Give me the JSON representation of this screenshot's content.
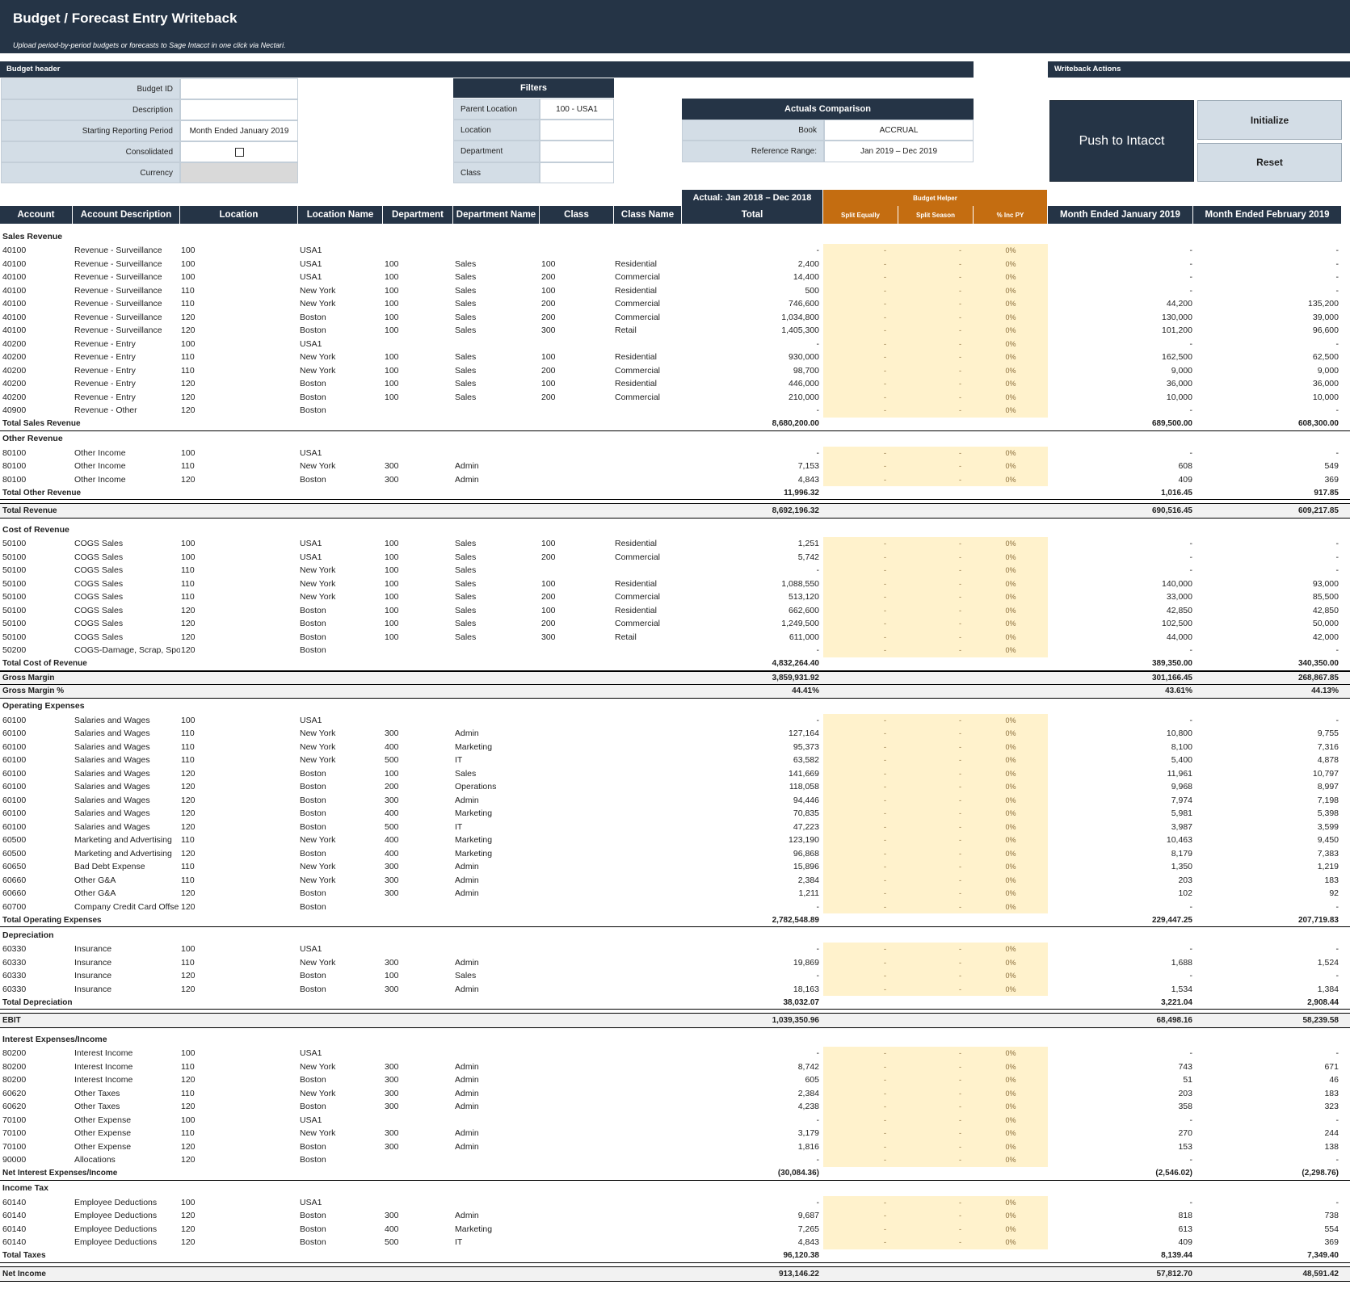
{
  "banner": {
    "title": "Budget / Forecast Entry Writeback",
    "subtitle": "Upload period-by-period budgets or forecasts to Sage Intacct in one click via Nectari."
  },
  "budget_header": {
    "title": "Budget header",
    "fields": [
      {
        "label": "Budget ID",
        "value": ""
      },
      {
        "label": "Description",
        "value": ""
      },
      {
        "label": "Starting Reporting Period",
        "value": "Month Ended January 2019"
      },
      {
        "label": "Consolidated",
        "value": ""
      },
      {
        "label": "Currency",
        "value": ""
      }
    ]
  },
  "filters": {
    "title": "Filters",
    "fields": [
      {
        "label": "Parent Location",
        "value": "100 - USA1"
      },
      {
        "label": "Location",
        "value": ""
      },
      {
        "label": "Department",
        "value": ""
      },
      {
        "label": "Class",
        "value": ""
      }
    ]
  },
  "actuals": {
    "title": "Actuals Comparison",
    "fields": [
      {
        "label": "Book",
        "value": "ACCRUAL"
      },
      {
        "label": "Reference Range:",
        "value": "Jan 2019 – Dec 2019"
      }
    ]
  },
  "writeback": {
    "title": "Writeback Actions",
    "push": "Push to Intacct",
    "initialize": "Initialize",
    "reset": "Reset"
  },
  "table_headers": {
    "account": "Account",
    "desc": "Account Description",
    "location": "Location",
    "loc_name": "Location Name",
    "dept": "Department",
    "dept_name": "Department Name",
    "class": "Class",
    "class_name": "Class Name",
    "actual_group": "Actual: Jan 2018 – Dec 2018",
    "total": "Total",
    "helper_group": "Budget Helper",
    "split_equally": "Split Equally",
    "split_season": "Split Season",
    "inc_py": "% Inc PY",
    "m1": "Month Ended January 2019",
    "m2": "Month Ended February 2019"
  },
  "rows": [
    {
      "t": "sec",
      "label": "Sales Revenue"
    },
    {
      "t": "d",
      "c": [
        "40100",
        "Revenue - Surveillance",
        "100",
        "USA1",
        "",
        "",
        "",
        ""
      ],
      "tot": "-",
      "m1": "-",
      "m2": "-"
    },
    {
      "t": "d",
      "c": [
        "40100",
        "Revenue - Surveillance",
        "100",
        "USA1",
        "100",
        "Sales",
        "100",
        "Residential"
      ],
      "tot": "2,400",
      "m1": "-",
      "m2": "-"
    },
    {
      "t": "d",
      "c": [
        "40100",
        "Revenue - Surveillance",
        "100",
        "USA1",
        "100",
        "Sales",
        "200",
        "Commercial"
      ],
      "tot": "14,400",
      "m1": "-",
      "m2": "-"
    },
    {
      "t": "d",
      "c": [
        "40100",
        "Revenue - Surveillance",
        "110",
        "New York",
        "100",
        "Sales",
        "100",
        "Residential"
      ],
      "tot": "500",
      "m1": "-",
      "m2": "-"
    },
    {
      "t": "d",
      "c": [
        "40100",
        "Revenue - Surveillance",
        "110",
        "New York",
        "100",
        "Sales",
        "200",
        "Commercial"
      ],
      "tot": "746,600",
      "m1": "44,200",
      "m2": "135,200"
    },
    {
      "t": "d",
      "c": [
        "40100",
        "Revenue - Surveillance",
        "120",
        "Boston",
        "100",
        "Sales",
        "200",
        "Commercial"
      ],
      "tot": "1,034,800",
      "m1": "130,000",
      "m2": "39,000"
    },
    {
      "t": "d",
      "c": [
        "40100",
        "Revenue - Surveillance",
        "120",
        "Boston",
        "100",
        "Sales",
        "300",
        "Retail"
      ],
      "tot": "1,405,300",
      "m1": "101,200",
      "m2": "96,600"
    },
    {
      "t": "d",
      "c": [
        "40200",
        "Revenue - Entry",
        "100",
        "USA1",
        "",
        "",
        "",
        ""
      ],
      "tot": "-",
      "m1": "-",
      "m2": "-"
    },
    {
      "t": "d",
      "c": [
        "40200",
        "Revenue - Entry",
        "110",
        "New York",
        "100",
        "Sales",
        "100",
        "Residential"
      ],
      "tot": "930,000",
      "m1": "162,500",
      "m2": "62,500"
    },
    {
      "t": "d",
      "c": [
        "40200",
        "Revenue - Entry",
        "110",
        "New York",
        "100",
        "Sales",
        "200",
        "Commercial"
      ],
      "tot": "98,700",
      "m1": "9,000",
      "m2": "9,000"
    },
    {
      "t": "d",
      "c": [
        "40200",
        "Revenue - Entry",
        "120",
        "Boston",
        "100",
        "Sales",
        "100",
        "Residential"
      ],
      "tot": "446,000",
      "m1": "36,000",
      "m2": "36,000"
    },
    {
      "t": "d",
      "c": [
        "40200",
        "Revenue - Entry",
        "120",
        "Boston",
        "100",
        "Sales",
        "200",
        "Commercial"
      ],
      "tot": "210,000",
      "m1": "10,000",
      "m2": "10,000"
    },
    {
      "t": "d",
      "c": [
        "40900",
        "Revenue - Other",
        "120",
        "Boston",
        "",
        "",
        "",
        ""
      ],
      "tot": "-",
      "m1": "-",
      "m2": "-"
    },
    {
      "t": "tot",
      "label": "Total Sales Revenue",
      "tot": "8,680,200.00",
      "m1": "689,500.00",
      "m2": "608,300.00"
    },
    {
      "t": "sec",
      "label": "Other Revenue"
    },
    {
      "t": "d",
      "c": [
        "80100",
        "Other Income",
        "100",
        "USA1",
        "",
        "",
        "",
        ""
      ],
      "tot": "-",
      "m1": "-",
      "m2": "-"
    },
    {
      "t": "d",
      "c": [
        "80100",
        "Other Income",
        "110",
        "New York",
        "300",
        "Admin",
        "",
        ""
      ],
      "tot": "7,153",
      "m1": "608",
      "m2": "549"
    },
    {
      "t": "d",
      "c": [
        "80100",
        "Other Income",
        "120",
        "Boston",
        "300",
        "Admin",
        "",
        ""
      ],
      "tot": "4,843",
      "m1": "409",
      "m2": "369"
    },
    {
      "t": "tot",
      "label": "Total Other Revenue",
      "tot": "11,996.32",
      "m1": "1,016.45",
      "m2": "917.85"
    },
    {
      "t": "big",
      "label": "Total Revenue",
      "tot": "8,692,196.32",
      "m1": "690,516.45",
      "m2": "609,217.85"
    },
    {
      "t": "sec",
      "label": "Cost of Revenue"
    },
    {
      "t": "d",
      "c": [
        "50100",
        "COGS Sales",
        "100",
        "USA1",
        "100",
        "Sales",
        "100",
        "Residential"
      ],
      "tot": "1,251",
      "m1": "-",
      "m2": "-"
    },
    {
      "t": "d",
      "c": [
        "50100",
        "COGS Sales",
        "100",
        "USA1",
        "100",
        "Sales",
        "200",
        "Commercial"
      ],
      "tot": "5,742",
      "m1": "-",
      "m2": "-"
    },
    {
      "t": "d",
      "c": [
        "50100",
        "COGS Sales",
        "110",
        "New York",
        "100",
        "Sales",
        "",
        ""
      ],
      "tot": "-",
      "m1": "-",
      "m2": "-"
    },
    {
      "t": "d",
      "c": [
        "50100",
        "COGS Sales",
        "110",
        "New York",
        "100",
        "Sales",
        "100",
        "Residential"
      ],
      "tot": "1,088,550",
      "m1": "140,000",
      "m2": "93,000"
    },
    {
      "t": "d",
      "c": [
        "50100",
        "COGS Sales",
        "110",
        "New York",
        "100",
        "Sales",
        "200",
        "Commercial"
      ],
      "tot": "513,120",
      "m1": "33,000",
      "m2": "85,500"
    },
    {
      "t": "d",
      "c": [
        "50100",
        "COGS Sales",
        "120",
        "Boston",
        "100",
        "Sales",
        "100",
        "Residential"
      ],
      "tot": "662,600",
      "m1": "42,850",
      "m2": "42,850"
    },
    {
      "t": "d",
      "c": [
        "50100",
        "COGS Sales",
        "120",
        "Boston",
        "100",
        "Sales",
        "200",
        "Commercial"
      ],
      "tot": "1,249,500",
      "m1": "102,500",
      "m2": "50,000"
    },
    {
      "t": "d",
      "c": [
        "50100",
        "COGS Sales",
        "120",
        "Boston",
        "100",
        "Sales",
        "300",
        "Retail"
      ],
      "tot": "611,000",
      "m1": "44,000",
      "m2": "42,000"
    },
    {
      "t": "d",
      "c": [
        "50200",
        "COGS-Damage, Scrap, Spoil",
        "120",
        "Boston",
        "",
        "",
        "",
        ""
      ],
      "tot": "-",
      "m1": "-",
      "m2": "-"
    },
    {
      "t": "tot",
      "label": "Total Cost of Revenue",
      "tot": "4,832,264.40",
      "m1": "389,350.00",
      "m2": "340,350.00"
    },
    {
      "t": "gm",
      "label": "Gross Margin",
      "tot": "3,859,931.92",
      "m1": "301,166.45",
      "m2": "268,867.85"
    },
    {
      "t": "gmp",
      "label": "Gross Margin %",
      "tot": "44.41%",
      "m1": "43.61%",
      "m2": "44.13%"
    },
    {
      "t": "sec",
      "label": "Operating Expenses"
    },
    {
      "t": "d",
      "c": [
        "60100",
        "Salaries and Wages",
        "100",
        "USA1",
        "",
        "",
        "",
        ""
      ],
      "tot": "-",
      "m1": "-",
      "m2": "-"
    },
    {
      "t": "d",
      "c": [
        "60100",
        "Salaries and Wages",
        "110",
        "New York",
        "300",
        "Admin",
        "",
        ""
      ],
      "tot": "127,164",
      "m1": "10,800",
      "m2": "9,755"
    },
    {
      "t": "d",
      "c": [
        "60100",
        "Salaries and Wages",
        "110",
        "New York",
        "400",
        "Marketing",
        "",
        ""
      ],
      "tot": "95,373",
      "m1": "8,100",
      "m2": "7,316"
    },
    {
      "t": "d",
      "c": [
        "60100",
        "Salaries and Wages",
        "110",
        "New York",
        "500",
        "IT",
        "",
        ""
      ],
      "tot": "63,582",
      "m1": "5,400",
      "m2": "4,878"
    },
    {
      "t": "d",
      "c": [
        "60100",
        "Salaries and Wages",
        "120",
        "Boston",
        "100",
        "Sales",
        "",
        ""
      ],
      "tot": "141,669",
      "m1": "11,961",
      "m2": "10,797"
    },
    {
      "t": "d",
      "c": [
        "60100",
        "Salaries and Wages",
        "120",
        "Boston",
        "200",
        "Operations",
        "",
        ""
      ],
      "tot": "118,058",
      "m1": "9,968",
      "m2": "8,997"
    },
    {
      "t": "d",
      "c": [
        "60100",
        "Salaries and Wages",
        "120",
        "Boston",
        "300",
        "Admin",
        "",
        ""
      ],
      "tot": "94,446",
      "m1": "7,974",
      "m2": "7,198"
    },
    {
      "t": "d",
      "c": [
        "60100",
        "Salaries and Wages",
        "120",
        "Boston",
        "400",
        "Marketing",
        "",
        ""
      ],
      "tot": "70,835",
      "m1": "5,981",
      "m2": "5,398"
    },
    {
      "t": "d",
      "c": [
        "60100",
        "Salaries and Wages",
        "120",
        "Boston",
        "500",
        "IT",
        "",
        ""
      ],
      "tot": "47,223",
      "m1": "3,987",
      "m2": "3,599"
    },
    {
      "t": "d",
      "c": [
        "60500",
        "Marketing and Advertising",
        "110",
        "New York",
        "400",
        "Marketing",
        "",
        ""
      ],
      "tot": "123,190",
      "m1": "10,463",
      "m2": "9,450"
    },
    {
      "t": "d",
      "c": [
        "60500",
        "Marketing and Advertising",
        "120",
        "Boston",
        "400",
        "Marketing",
        "",
        ""
      ],
      "tot": "96,868",
      "m1": "8,179",
      "m2": "7,383"
    },
    {
      "t": "d",
      "c": [
        "60650",
        "Bad Debt Expense",
        "110",
        "New York",
        "300",
        "Admin",
        "",
        ""
      ],
      "tot": "15,896",
      "m1": "1,350",
      "m2": "1,219"
    },
    {
      "t": "d",
      "c": [
        "60660",
        "Other G&A",
        "110",
        "New York",
        "300",
        "Admin",
        "",
        ""
      ],
      "tot": "2,384",
      "m1": "203",
      "m2": "183"
    },
    {
      "t": "d",
      "c": [
        "60660",
        "Other G&A",
        "120",
        "Boston",
        "300",
        "Admin",
        "",
        ""
      ],
      "tot": "1,211",
      "m1": "102",
      "m2": "92"
    },
    {
      "t": "d",
      "c": [
        "60700",
        "Company Credit Card Offse",
        "120",
        "Boston",
        "",
        "",
        "",
        ""
      ],
      "tot": "-",
      "m1": "-",
      "m2": "-"
    },
    {
      "t": "tot",
      "label": "Total Operating Expenses",
      "tot": "2,782,548.89",
      "m1": "229,447.25",
      "m2": "207,719.83"
    },
    {
      "t": "sec",
      "label": "Depreciation"
    },
    {
      "t": "d",
      "c": [
        "60330",
        "Insurance",
        "100",
        "USA1",
        "",
        "",
        "",
        ""
      ],
      "tot": "-",
      "m1": "-",
      "m2": "-"
    },
    {
      "t": "d",
      "c": [
        "60330",
        "Insurance",
        "110",
        "New York",
        "300",
        "Admin",
        "",
        ""
      ],
      "tot": "19,869",
      "m1": "1,688",
      "m2": "1,524"
    },
    {
      "t": "d",
      "c": [
        "60330",
        "Insurance",
        "120",
        "Boston",
        "100",
        "Sales",
        "",
        ""
      ],
      "tot": "-",
      "m1": "-",
      "m2": "-"
    },
    {
      "t": "d",
      "c": [
        "60330",
        "Insurance",
        "120",
        "Boston",
        "300",
        "Admin",
        "",
        ""
      ],
      "tot": "18,163",
      "m1": "1,534",
      "m2": "1,384"
    },
    {
      "t": "tot",
      "label": "Total Depreciation",
      "tot": "38,032.07",
      "m1": "3,221.04",
      "m2": "2,908.44"
    },
    {
      "t": "big",
      "label": "EBIT",
      "tot": "1,039,350.96",
      "m1": "68,498.16",
      "m2": "58,239.58"
    },
    {
      "t": "sec",
      "label": "Interest Expenses/Income"
    },
    {
      "t": "d",
      "c": [
        "80200",
        "Interest Income",
        "100",
        "USA1",
        "",
        "",
        "",
        ""
      ],
      "tot": "-",
      "m1": "-",
      "m2": "-"
    },
    {
      "t": "d",
      "c": [
        "80200",
        "Interest Income",
        "110",
        "New York",
        "300",
        "Admin",
        "",
        ""
      ],
      "tot": "8,742",
      "m1": "743",
      "m2": "671"
    },
    {
      "t": "d",
      "c": [
        "80200",
        "Interest Income",
        "120",
        "Boston",
        "300",
        "Admin",
        "",
        ""
      ],
      "tot": "605",
      "m1": "51",
      "m2": "46"
    },
    {
      "t": "d",
      "c": [
        "60620",
        "Other Taxes",
        "110",
        "New York",
        "300",
        "Admin",
        "",
        ""
      ],
      "tot": "2,384",
      "m1": "203",
      "m2": "183"
    },
    {
      "t": "d",
      "c": [
        "60620",
        "Other Taxes",
        "120",
        "Boston",
        "300",
        "Admin",
        "",
        ""
      ],
      "tot": "4,238",
      "m1": "358",
      "m2": "323"
    },
    {
      "t": "d",
      "c": [
        "70100",
        "Other Expense",
        "100",
        "USA1",
        "",
        "",
        "",
        ""
      ],
      "tot": "-",
      "m1": "-",
      "m2": "-"
    },
    {
      "t": "d",
      "c": [
        "70100",
        "Other Expense",
        "110",
        "New York",
        "300",
        "Admin",
        "",
        ""
      ],
      "tot": "3,179",
      "m1": "270",
      "m2": "244"
    },
    {
      "t": "d",
      "c": [
        "70100",
        "Other Expense",
        "120",
        "Boston",
        "300",
        "Admin",
        "",
        ""
      ],
      "tot": "1,816",
      "m1": "153",
      "m2": "138"
    },
    {
      "t": "d",
      "c": [
        "90000",
        "Allocations",
        "120",
        "Boston",
        "",
        "",
        "",
        ""
      ],
      "tot": "-",
      "m1": "-",
      "m2": "-"
    },
    {
      "t": "tot",
      "label": "Net Interest Expenses/Income",
      "tot": "(30,084.36)",
      "m1": "(2,546.02)",
      "m2": "(2,298.76)"
    },
    {
      "t": "sec",
      "label": "Income Tax"
    },
    {
      "t": "d",
      "c": [
        "60140",
        "Employee Deductions",
        "100",
        "USA1",
        "",
        "",
        "",
        ""
      ],
      "tot": "-",
      "m1": "-",
      "m2": "-"
    },
    {
      "t": "d",
      "c": [
        "60140",
        "Employee Deductions",
        "120",
        "Boston",
        "300",
        "Admin",
        "",
        ""
      ],
      "tot": "9,687",
      "m1": "818",
      "m2": "738"
    },
    {
      "t": "d",
      "c": [
        "60140",
        "Employee Deductions",
        "120",
        "Boston",
        "400",
        "Marketing",
        "",
        ""
      ],
      "tot": "7,265",
      "m1": "613",
      "m2": "554"
    },
    {
      "t": "d",
      "c": [
        "60140",
        "Employee Deductions",
        "120",
        "Boston",
        "500",
        "IT",
        "",
        ""
      ],
      "tot": "4,843",
      "m1": "409",
      "m2": "369"
    },
    {
      "t": "tot",
      "label": "Total Taxes",
      "tot": "96,120.38",
      "m1": "8,139.44",
      "m2": "7,349.40"
    },
    {
      "t": "big",
      "label": "Net Income",
      "tot": "913,146.22",
      "m1": "57,812.70",
      "m2": "48,591.42"
    }
  ],
  "helper_values": {
    "dash": "-",
    "pct": "0%"
  },
  "colors": {
    "navy": "#253446",
    "orange": "#c46d11",
    "helper_fill": "#fff2cc",
    "label_fill": "#d3dde6"
  }
}
